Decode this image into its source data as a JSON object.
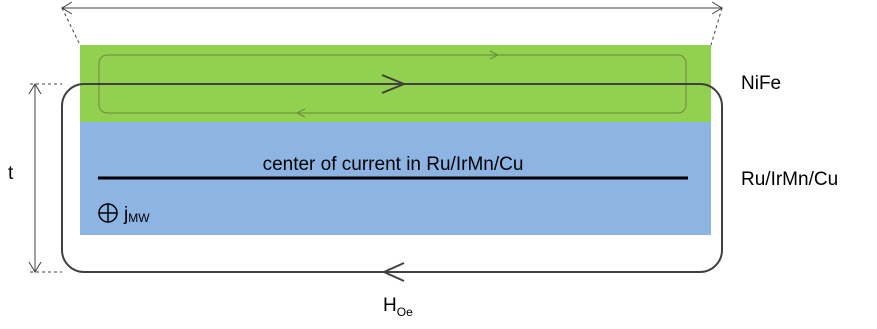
{
  "layers": {
    "top": {
      "label": "NiFe",
      "color": "#92d050"
    },
    "bottom": {
      "label": "Ru/IrMn/Cu",
      "color": "#8eb4e3"
    }
  },
  "labels": {
    "center_line": "center of current in Ru/IrMn/Cu",
    "thickness": "t",
    "current_main": "j",
    "current_sub": "MW",
    "field_main": "H",
    "field_sub": "Oe"
  },
  "colors": {
    "stroke": "#404040",
    "inner_loop": "#6b8a3a",
    "text": "#000000"
  },
  "icons": {
    "current_into_page": "circled-plus-icon"
  }
}
